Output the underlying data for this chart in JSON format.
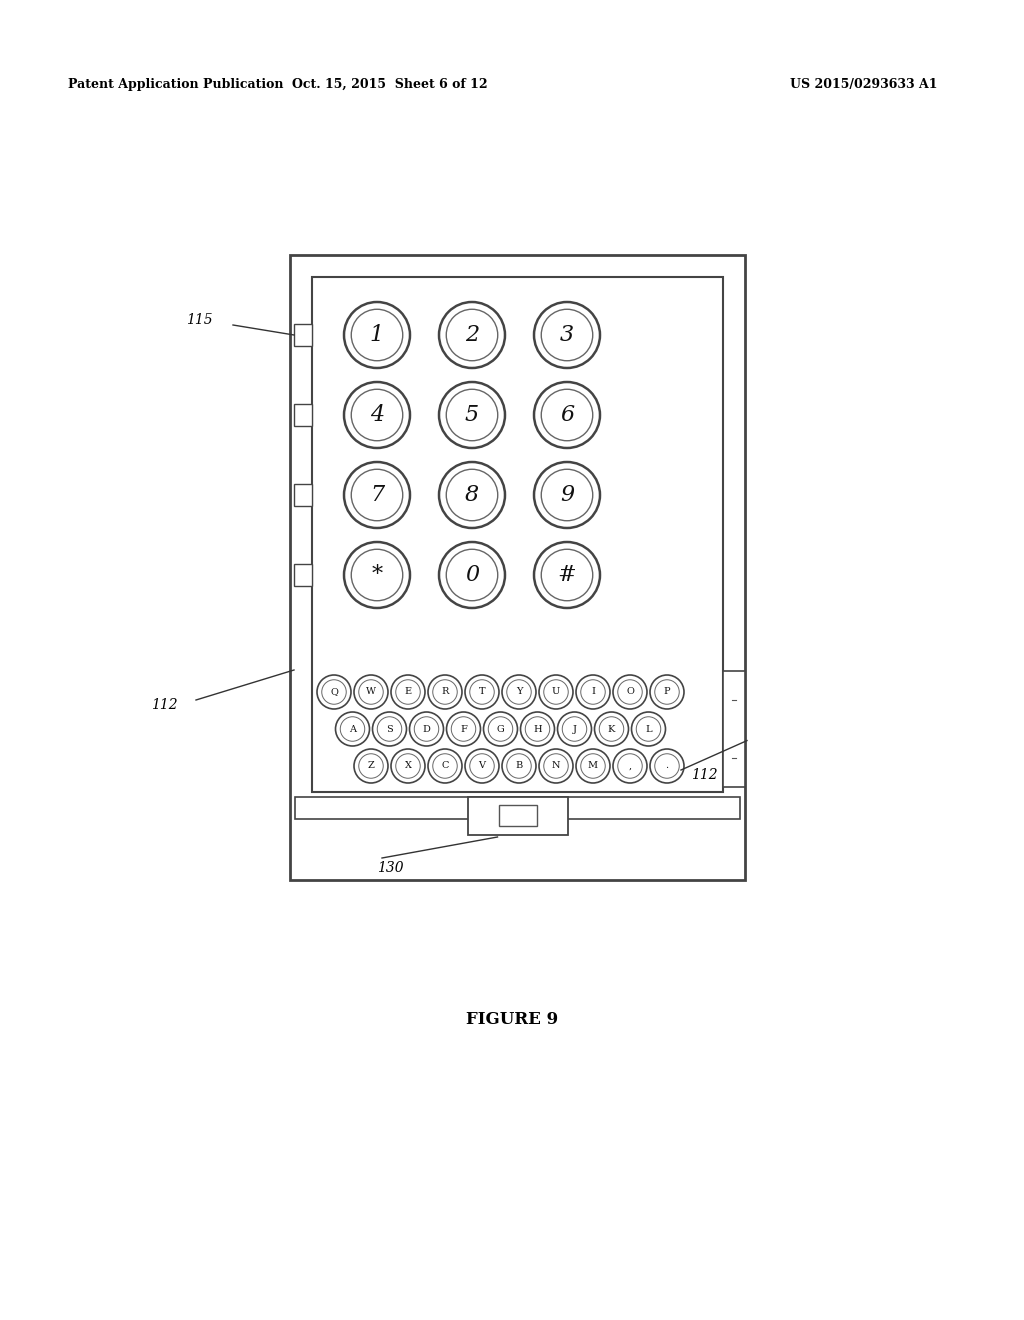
{
  "bg_color": "#ffffff",
  "header_left": "Patent Application Publication",
  "header_mid": "Oct. 15, 2015  Sheet 6 of 12",
  "header_right": "US 2015/0293633 A1",
  "figure_label": "FIGURE 9",
  "label_115": "115",
  "label_112_left": "112",
  "label_112_right": "112",
  "label_130": "130",
  "keypad_keys": [
    "1",
    "2",
    "3",
    "4",
    "5",
    "6",
    "7",
    "8",
    "9",
    "*",
    "0",
    "#"
  ],
  "qwerty_row1": [
    "Q",
    "W",
    "E",
    "R",
    "T",
    "Y",
    "U",
    "I",
    "O",
    "P"
  ],
  "qwerty_row2": [
    "A",
    "S",
    "D",
    "F",
    "G",
    "H",
    "J",
    "K",
    "L"
  ],
  "qwerty_row3": [
    "Z",
    "X",
    "C",
    "V",
    "B",
    "N",
    "M",
    ",",
    "."
  ]
}
